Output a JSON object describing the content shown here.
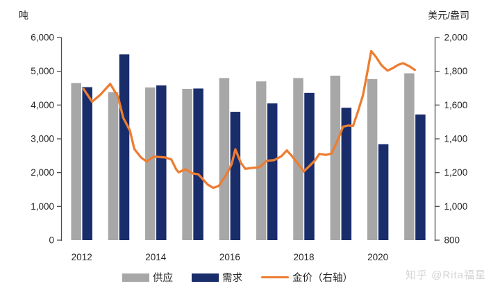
{
  "watermark": "知乎 @Rita福星",
  "chart_data": {
    "type": "bar",
    "subtype": "grouped-bars-with-line-overlay",
    "title": "",
    "left_axis": {
      "title": "吨",
      "min": 0,
      "max": 6000,
      "step": 1000,
      "tick_labels": [
        "0",
        "1,000",
        "2,000",
        "3,000",
        "4,000",
        "5,000",
        "6,000"
      ]
    },
    "right_axis": {
      "title": "美元/盎司",
      "min": 800,
      "max": 2000,
      "step": 200,
      "tick_labels": [
        "800",
        "1,000",
        "1,200",
        "1,400",
        "1,600",
        "1,800",
        "2,000"
      ]
    },
    "x_axis": {
      "tick_years": [
        2012,
        2014,
        2016,
        2018,
        2020
      ],
      "tick_labels": [
        "2012",
        "2014",
        "2016",
        "2018",
        "2020"
      ]
    },
    "categories": [
      2012,
      2013,
      2014,
      2015,
      2016,
      2017,
      2018,
      2019,
      2020,
      2021
    ],
    "grid": false,
    "legend_position": "bottom",
    "series": [
      {
        "name": "供应",
        "type": "bar",
        "axis": "left",
        "color": "#a7a7a7",
        "values": [
          4650,
          4380,
          4520,
          4480,
          4800,
          4700,
          4800,
          4870,
          4770,
          4940
        ]
      },
      {
        "name": "需求",
        "type": "bar",
        "axis": "left",
        "color": "#1a2d6b",
        "values": [
          4530,
          5500,
          4580,
          4490,
          3800,
          4050,
          4360,
          3920,
          2840,
          3720
        ]
      },
      {
        "name": "金价（右轴）",
        "type": "line",
        "axis": "right",
        "color": "#ED7D31",
        "points": [
          [
            2012.05,
            1695
          ],
          [
            2012.28,
            1620
          ],
          [
            2012.5,
            1660
          ],
          [
            2012.77,
            1725
          ],
          [
            2012.98,
            1650
          ],
          [
            2013.12,
            1525
          ],
          [
            2013.3,
            1450
          ],
          [
            2013.42,
            1340
          ],
          [
            2013.6,
            1290
          ],
          [
            2013.75,
            1266
          ],
          [
            2013.95,
            1295
          ],
          [
            2014.25,
            1290
          ],
          [
            2014.42,
            1278
          ],
          [
            2014.55,
            1220
          ],
          [
            2014.62,
            1202
          ],
          [
            2014.8,
            1220
          ],
          [
            2015.0,
            1195
          ],
          [
            2015.15,
            1190
          ],
          [
            2015.4,
            1130
          ],
          [
            2015.55,
            1110
          ],
          [
            2015.7,
            1120
          ],
          [
            2015.9,
            1185
          ],
          [
            2016.05,
            1250
          ],
          [
            2016.15,
            1338
          ],
          [
            2016.3,
            1258
          ],
          [
            2016.42,
            1222
          ],
          [
            2016.6,
            1228
          ],
          [
            2016.8,
            1232
          ],
          [
            2017.0,
            1270
          ],
          [
            2017.2,
            1274
          ],
          [
            2017.4,
            1298
          ],
          [
            2017.54,
            1331
          ],
          [
            2017.68,
            1298
          ],
          [
            2017.86,
            1248
          ],
          [
            2018.0,
            1207
          ],
          [
            2018.18,
            1245
          ],
          [
            2018.3,
            1272
          ],
          [
            2018.42,
            1311
          ],
          [
            2018.6,
            1305
          ],
          [
            2018.75,
            1313
          ],
          [
            2018.93,
            1400
          ],
          [
            2019.06,
            1472
          ],
          [
            2019.2,
            1479
          ],
          [
            2019.33,
            1476
          ],
          [
            2019.46,
            1560
          ],
          [
            2019.6,
            1660
          ],
          [
            2019.72,
            1800
          ],
          [
            2019.82,
            1920
          ],
          [
            2019.95,
            1885
          ],
          [
            2020.1,
            1835
          ],
          [
            2020.26,
            1804
          ],
          [
            2020.4,
            1818
          ],
          [
            2020.55,
            1838
          ],
          [
            2020.68,
            1848
          ],
          [
            2020.85,
            1830
          ],
          [
            2021.0,
            1808
          ]
        ]
      }
    ],
    "axis_line_color": "#4d4d4d"
  }
}
